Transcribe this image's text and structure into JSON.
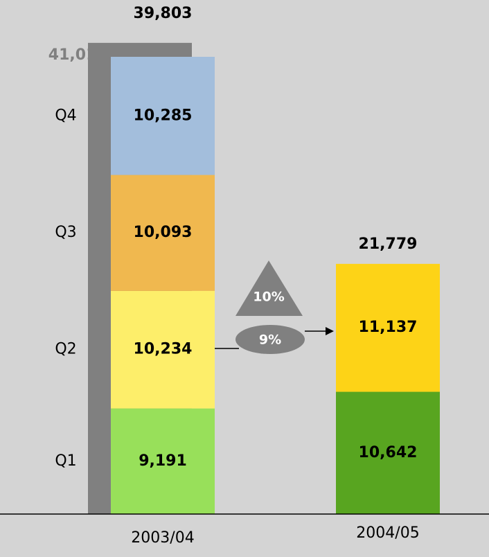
{
  "chart_data": {
    "type": "stacked_bar",
    "categories": [
      "2003/04",
      "2004/05"
    ],
    "series": [
      {
        "name": "Q1",
        "colors": [
          "#98e05a",
          "#58a520"
        ],
        "values": [
          9191,
          10642
        ],
        "value_labels": [
          "9,191",
          "10,642"
        ]
      },
      {
        "name": "Q2",
        "colors": [
          "#fdee6a",
          "#fdd317"
        ],
        "values": [
          10234,
          11137
        ],
        "value_labels": [
          "10,234",
          "11,137"
        ]
      },
      {
        "name": "Q3",
        "colors": [
          "#f0b84f",
          null
        ],
        "values": [
          10093,
          null
        ],
        "value_labels": [
          "10,093",
          null
        ]
      },
      {
        "name": "Q4",
        "colors": [
          "#a3bedc",
          null
        ],
        "values": [
          10285,
          null
        ],
        "value_labels": [
          "10,285",
          null
        ]
      }
    ],
    "totals": [
      39803,
      21779
    ],
    "total_labels": [
      "39,803",
      "21,779"
    ],
    "reference": {
      "value": 41017,
      "label": "41,017*",
      "color": "#808080"
    },
    "annotations": [
      "10%",
      "9%"
    ]
  }
}
